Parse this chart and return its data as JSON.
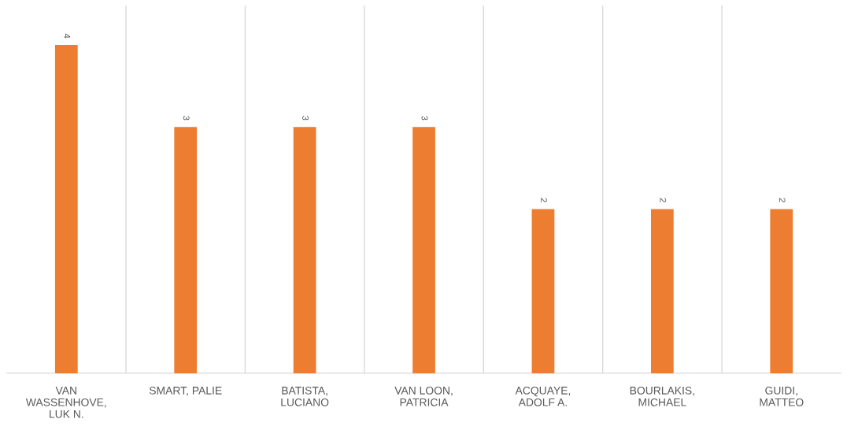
{
  "chart_data": {
    "type": "bar",
    "categories": [
      "VAN WASSENHOVE, LUK N.",
      "SMART, PALIE",
      "BATISTA, LUCIANO",
      "VAN LOON, PATRICIA",
      "ACQUAYE, ADOLF A.",
      "BOURLAKIS, MICHAEL",
      "GUIDI, MATTEO"
    ],
    "values": [
      4,
      3,
      3,
      3,
      2,
      2,
      2
    ],
    "color": "#ed7d31",
    "data_labels": true,
    "grid": "x",
    "legend": false
  }
}
